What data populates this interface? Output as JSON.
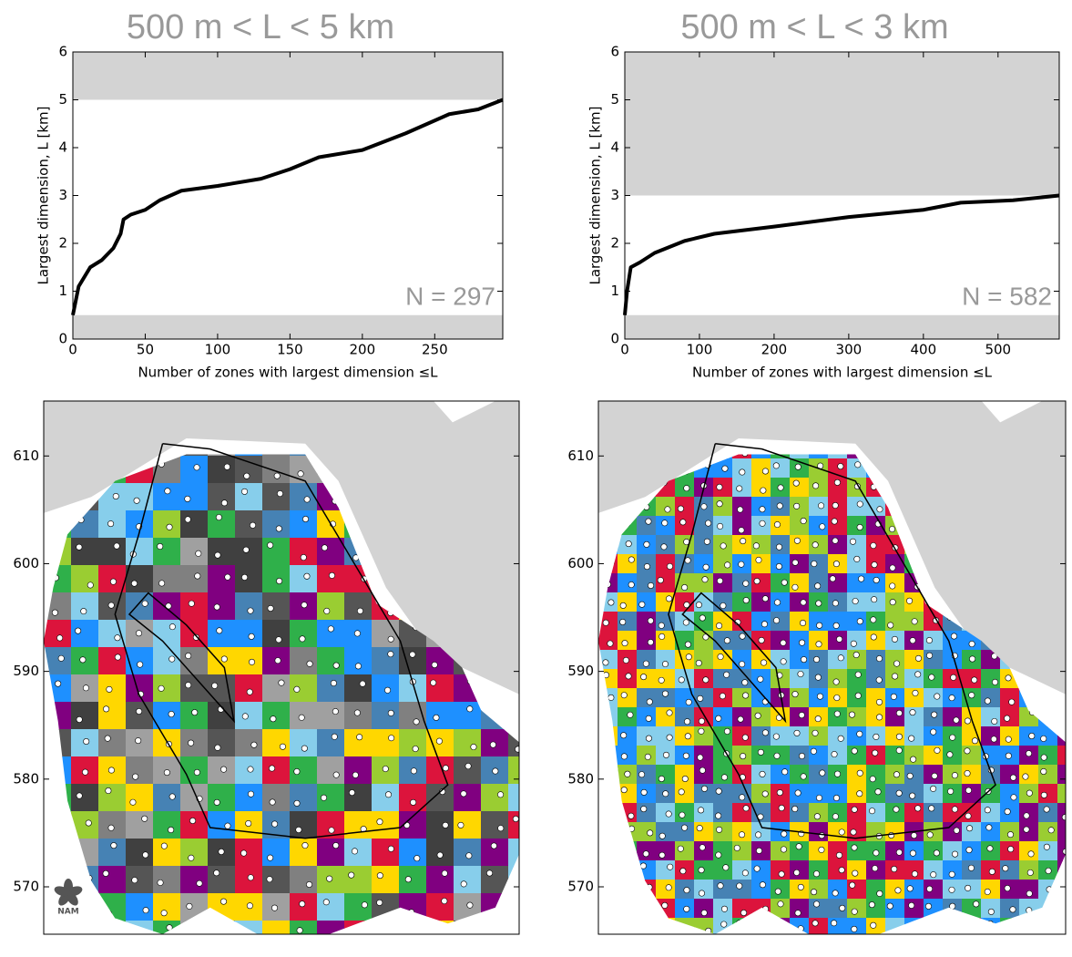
{
  "chart_data": [
    {
      "type": "line",
      "title": "500 m < L < 5 km",
      "x_label": "Number of zones with largest dimension ≤L",
      "y_label": "Largest dimension, L [km]",
      "annotation": "N = 297",
      "xlim": [
        0,
        297
      ],
      "ylim": [
        0,
        6
      ],
      "xticks": [
        0,
        50,
        100,
        150,
        200,
        250
      ],
      "yticks": [
        0,
        1,
        2,
        3,
        4,
        5,
        6
      ],
      "shaded_bands": [
        [
          0,
          0.5
        ],
        [
          5,
          6
        ]
      ],
      "band_color": "#d3d3d3",
      "series": [
        {
          "color": "#000000",
          "x": [
            0,
            2,
            4,
            8,
            12,
            20,
            28,
            33,
            35,
            40,
            50,
            60,
            75,
            100,
            130,
            150,
            170,
            200,
            230,
            260,
            280,
            297
          ],
          "y": [
            0.5,
            0.8,
            1.1,
            1.3,
            1.5,
            1.65,
            1.9,
            2.2,
            2.5,
            2.6,
            2.7,
            2.9,
            3.1,
            3.2,
            3.35,
            3.55,
            3.8,
            3.95,
            4.3,
            4.7,
            4.8,
            5.0
          ]
        }
      ]
    },
    {
      "type": "line",
      "title": "500 m < L < 3 km",
      "x_label": "Number of zones with largest dimension ≤L",
      "y_label": "Largest dimension, L [km]",
      "annotation": "N = 582",
      "xlim": [
        0,
        582
      ],
      "ylim": [
        0,
        6
      ],
      "xticks": [
        0,
        100,
        200,
        300,
        400,
        500
      ],
      "yticks": [
        0,
        1,
        2,
        3,
        4,
        5,
        6
      ],
      "shaded_bands": [
        [
          0,
          0.5
        ],
        [
          3,
          6
        ]
      ],
      "band_color": "#d3d3d3",
      "series": [
        {
          "color": "#000000",
          "x": [
            0,
            3,
            8,
            20,
            40,
            80,
            120,
            200,
            300,
            400,
            450,
            520,
            582
          ],
          "y": [
            0.5,
            1.0,
            1.5,
            1.6,
            1.8,
            2.05,
            2.2,
            2.35,
            2.55,
            2.7,
            2.85,
            2.9,
            3.0
          ]
        }
      ]
    },
    {
      "type": "map",
      "ylim": [
        565.6,
        615.1
      ],
      "yticks": [
        570,
        580,
        590,
        600,
        610
      ],
      "logo": "NAM"
    },
    {
      "type": "map",
      "ylim": [
        565.6,
        615.1
      ],
      "yticks": [
        570,
        580,
        590,
        600,
        610
      ]
    }
  ]
}
